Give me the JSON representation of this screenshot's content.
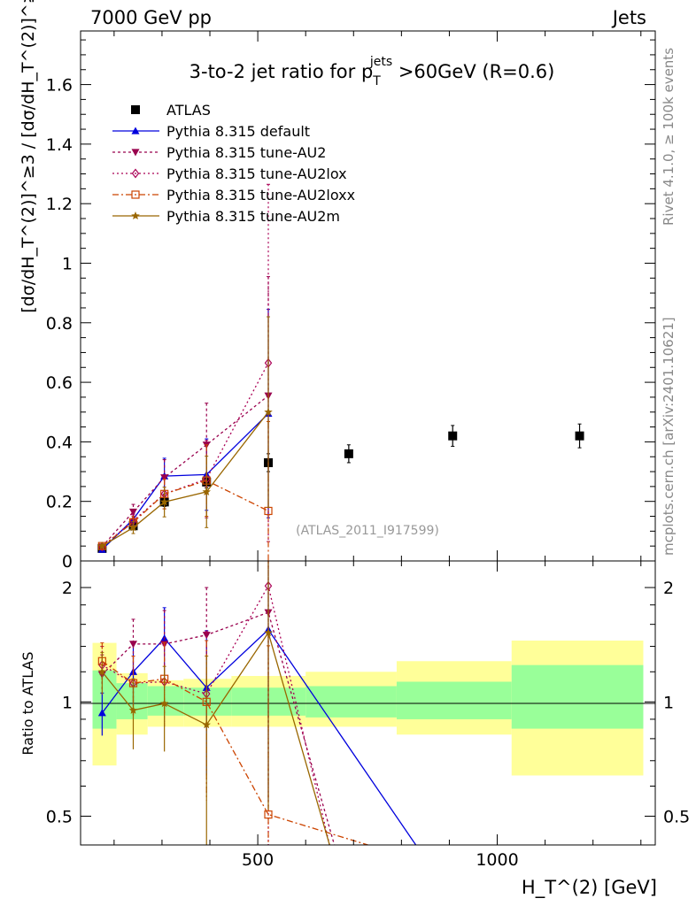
{
  "header": {
    "left": "7000 GeV pp",
    "right": "Jets"
  },
  "side_labels": {
    "rivet": "Rivet 4.1.0, ≥ 100k events",
    "mcplots": "mcplots.cern.ch [arXiv:2401.10621]"
  },
  "chart_data": [
    {
      "type": "scatter",
      "panel": "main",
      "title_parts": {
        "pre": "3-to-2 jet ratio for p",
        "sup": "jets",
        "sub": "T",
        "post": " >60GeV (R=0.6)"
      },
      "ylabel": "[dσ/dH_T^(2)]^≥3 / [dσ/dH_T^(2)]^≥2",
      "ylim": [
        0,
        1.78
      ],
      "xlim": [
        130,
        1330
      ],
      "y_ticks": [
        0,
        0.2,
        0.4,
        0.6,
        0.8,
        1,
        1.2,
        1.4,
        1.6
      ],
      "y_tick_labels": [
        "0",
        "0.2",
        "0.4",
        "0.6",
        "0.8",
        "1",
        "1.2",
        "1.4",
        "1.6"
      ],
      "watermark": "(ATLAS_2011_I917599)",
      "legend_position": "top-left",
      "series": [
        {
          "name": "ATLAS",
          "marker": "square",
          "color": "#000000",
          "x": [
            175,
            240,
            305,
            393,
            522,
            690,
            907,
            1172
          ],
          "y": [
            0.042,
            0.118,
            0.198,
            0.265,
            0.33,
            0.36,
            0.42,
            0.42
          ],
          "yerr": [
            0.004,
            0.01,
            0.015,
            0.02,
            0.03,
            0.03,
            0.035,
            0.04
          ]
        },
        {
          "name": "Pythia 8.315 default",
          "marker": "triangle-up",
          "color": "#0000dd",
          "dash": "solid",
          "x": [
            175,
            240,
            305,
            393,
            522
          ],
          "y": [
            0.038,
            0.14,
            0.285,
            0.29,
            0.495
          ],
          "yerr": [
            0.005,
            0.02,
            0.06,
            0.12,
            0.35
          ]
        },
        {
          "name": "Pythia 8.315 tune-AU2",
          "marker": "triangle-down",
          "color": "#99004d",
          "dash": "3,3",
          "x": [
            175,
            240,
            305,
            393,
            522
          ],
          "y": [
            0.048,
            0.165,
            0.28,
            0.39,
            0.555
          ],
          "yerr": [
            0.006,
            0.025,
            0.06,
            0.14,
            0.4
          ]
        },
        {
          "name": "Pythia 8.315 tune-AU2lox",
          "marker": "diamond",
          "color": "#aa0055",
          "dash": "2,3",
          "x": [
            175,
            240,
            305,
            393,
            522
          ],
          "y": [
            0.048,
            0.135,
            0.225,
            0.275,
            0.665
          ],
          "yerr": [
            0.006,
            0.02,
            0.05,
            0.13,
            0.6
          ]
        },
        {
          "name": "Pythia 8.315 tune-AU2loxx",
          "marker": "square-open",
          "color": "#cc4400",
          "dash": "7,3,2,3",
          "x": [
            175,
            240,
            305,
            393,
            522
          ],
          "y": [
            0.05,
            0.13,
            0.225,
            0.27,
            0.168
          ],
          "yerr": [
            0.006,
            0.02,
            0.05,
            0.12,
            0.3
          ]
        },
        {
          "name": "Pythia 8.315 tune-AU2m",
          "marker": "star",
          "color": "#996600",
          "dash": "solid",
          "x": [
            175,
            240,
            305,
            393,
            522
          ],
          "y": [
            0.05,
            0.112,
            0.198,
            0.232,
            0.5
          ],
          "yerr": [
            0.006,
            0.02,
            0.05,
            0.12,
            0.32
          ]
        }
      ]
    },
    {
      "type": "line",
      "panel": "ratio",
      "ylabel": "Ratio to ATLAS",
      "xlabel": "H_T^(2) [GeV]",
      "scale": "log",
      "ylim": [
        0.42,
        2.35
      ],
      "xlim": [
        130,
        1330
      ],
      "y_ticks": [
        0.5,
        1,
        2
      ],
      "y_tick_labels": [
        "0.5",
        "1",
        "2"
      ],
      "x_ticks": [
        500,
        1000
      ],
      "x_tick_labels": [
        "500",
        "1000"
      ],
      "bins": [
        {
          "lo": 155,
          "hi": 205,
          "stat": [
            0.85,
            1.21
          ],
          "total": [
            0.68,
            1.43
          ]
        },
        {
          "lo": 205,
          "hi": 270,
          "stat": [
            0.9,
            1.12
          ],
          "total": [
            0.82,
            1.19
          ]
        },
        {
          "lo": 270,
          "hi": 345,
          "stat": [
            0.92,
            1.1
          ],
          "total": [
            0.86,
            1.14
          ]
        },
        {
          "lo": 345,
          "hi": 445,
          "stat": [
            0.92,
            1.09
          ],
          "total": [
            0.86,
            1.15
          ]
        },
        {
          "lo": 445,
          "hi": 600,
          "stat": [
            0.92,
            1.09
          ],
          "total": [
            0.86,
            1.17
          ]
        },
        {
          "lo": 600,
          "hi": 790,
          "stat": [
            0.91,
            1.1
          ],
          "total": [
            0.86,
            1.2
          ]
        },
        {
          "lo": 790,
          "hi": 1030,
          "stat": [
            0.9,
            1.13
          ],
          "total": [
            0.82,
            1.28
          ]
        },
        {
          "lo": 1030,
          "hi": 1305,
          "stat": [
            0.85,
            1.25
          ],
          "total": [
            0.64,
            1.45
          ]
        }
      ],
      "series": [
        {
          "name": "Pythia 8.315 default",
          "x": [
            175,
            240,
            305,
            393,
            522,
            830
          ],
          "y": [
            0.935,
            1.2,
            1.47,
            1.09,
            1.55,
            0.42
          ],
          "yerr": [
            0.12,
            0.22,
            0.3,
            0.45,
            1.0,
            0
          ]
        },
        {
          "name": "Pythia 8.315 tune-AU2",
          "x": [
            175,
            240,
            305,
            393,
            522,
            660
          ],
          "y": [
            1.18,
            1.42,
            1.42,
            1.5,
            1.72,
            0.42
          ],
          "yerr": [
            0.15,
            0.23,
            0.32,
            0.5,
            1.2,
            0
          ]
        },
        {
          "name": "Pythia 8.315 tune-AU2lox",
          "x": [
            175,
            240,
            305,
            393,
            522,
            650
          ],
          "y": [
            1.25,
            1.12,
            1.13,
            1.05,
            2.02,
            0.42
          ],
          "yerr": [
            0.15,
            0.2,
            0.28,
            0.48,
            1.8,
            0
          ]
        },
        {
          "name": "Pythia 8.315 tune-AU2loxx",
          "x": [
            175,
            240,
            305,
            393,
            522,
            730
          ],
          "y": [
            1.28,
            1.12,
            1.15,
            1.0,
            0.505,
            0.42
          ],
          "yerr": [
            0.15,
            0.2,
            0.28,
            0.45,
            0.9,
            0
          ]
        },
        {
          "name": "Pythia 8.315 tune-AU2m",
          "x": [
            175,
            240,
            305,
            393,
            522,
            650
          ],
          "y": [
            1.2,
            0.95,
            0.99,
            0.87,
            1.52,
            0.42
          ],
          "yerr": [
            0.15,
            0.2,
            0.25,
            0.45,
            1.0,
            0
          ]
        }
      ]
    }
  ]
}
